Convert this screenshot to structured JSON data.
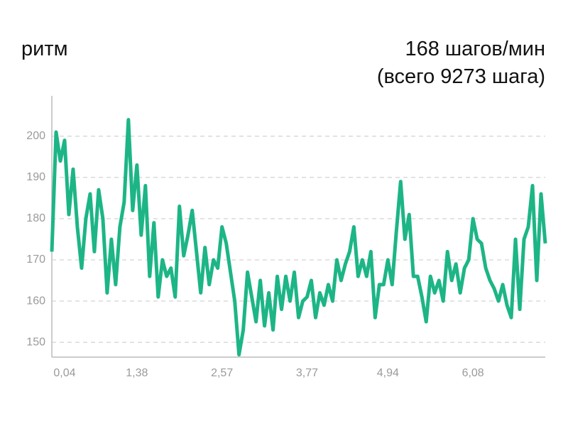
{
  "chart_data": {
    "type": "line",
    "title": "ритм",
    "summary": [
      "168 шагов/мин",
      "(всего 9273 шага)"
    ],
    "categories": [
      null,
      null,
      null,
      "0,04",
      null,
      null,
      null,
      null,
      null,
      null,
      null,
      null,
      null,
      null,
      null,
      null,
      null,
      null,
      null,
      null,
      "1,38",
      null,
      null,
      null,
      null,
      null,
      null,
      null,
      null,
      null,
      null,
      null,
      null,
      null,
      null,
      null,
      null,
      null,
      null,
      null,
      "2,57",
      null,
      null,
      null,
      null,
      null,
      null,
      null,
      null,
      null,
      null,
      null,
      null,
      null,
      null,
      null,
      null,
      null,
      null,
      null,
      "3,77",
      null,
      null,
      null,
      null,
      null,
      null,
      null,
      null,
      null,
      null,
      null,
      null,
      null,
      null,
      null,
      null,
      null,
      null,
      "4,94",
      null,
      null,
      null,
      null,
      null,
      null,
      null,
      null,
      null,
      null,
      null,
      null,
      null,
      null,
      null,
      null,
      null,
      null,
      null,
      "6,08",
      null,
      null,
      null,
      null,
      null,
      null,
      null,
      null,
      null,
      null,
      null,
      null,
      null,
      null,
      null,
      null,
      null
    ],
    "values": [
      172,
      201,
      194,
      199,
      181,
      192,
      178,
      168,
      180,
      186,
      172,
      187,
      180,
      162,
      175,
      164,
      178,
      184,
      204,
      182,
      193,
      176,
      188,
      166,
      179,
      161,
      170,
      166,
      168,
      161,
      183,
      171,
      176,
      182,
      172,
      162,
      173,
      164,
      170,
      168,
      178,
      174,
      167,
      160,
      147,
      153,
      167,
      161,
      155,
      165,
      154,
      162,
      153,
      166,
      158,
      166,
      160,
      167,
      156,
      160,
      161,
      165,
      156,
      162,
      159,
      164,
      160,
      170,
      165,
      169,
      172,
      178,
      166,
      170,
      166,
      172,
      156,
      164,
      164,
      170,
      164,
      177,
      189,
      175,
      181,
      166,
      166,
      161,
      155,
      166,
      162,
      165,
      160,
      172,
      165,
      169,
      162,
      168,
      170,
      180,
      175,
      174,
      168,
      165,
      163,
      160,
      164,
      159,
      156,
      175,
      158,
      175,
      178,
      188,
      165,
      186,
      174
    ],
    "color": "#1db586",
    "ylim": [
      146.4,
      209.8
    ],
    "yticks": [
      150,
      160,
      170,
      180,
      190,
      200
    ],
    "grid": true
  }
}
